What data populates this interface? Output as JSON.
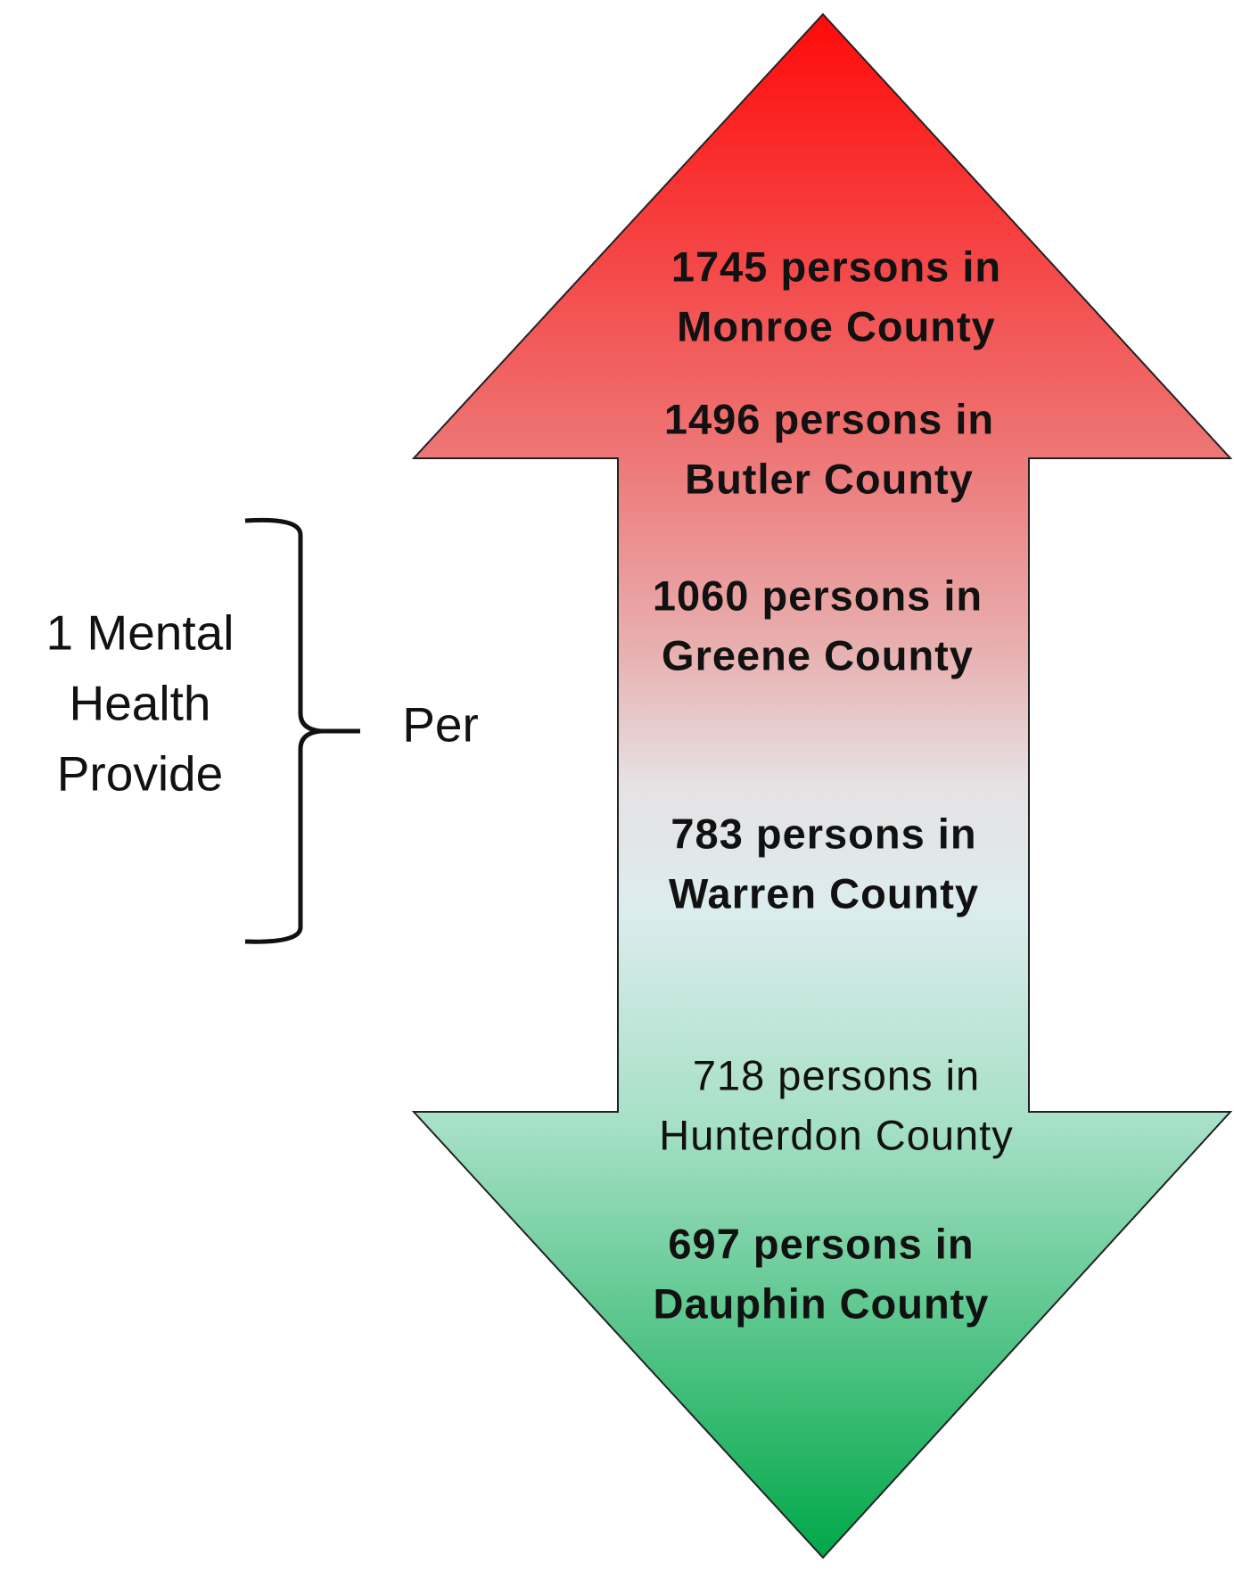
{
  "label": {
    "lines": [
      "1 Mental",
      "Health",
      "Provide"
    ]
  },
  "connector": "Per",
  "items": [
    {
      "lines": [
        "1745 persons in",
        "Monroe County"
      ],
      "bold": true
    },
    {
      "lines": [
        "1496 persons in",
        "Butler  County"
      ],
      "bold": true
    },
    {
      "lines": [
        "1060 persons in",
        "Greene County"
      ],
      "bold": true
    },
    {
      "lines": [
        "783 persons in",
        "Warren County"
      ],
      "bold": true
    },
    {
      "lines": [
        "718 persons in",
        "Hunterdon County"
      ],
      "bold": false
    },
    {
      "lines": [
        "697 persons in",
        "Dauphin  County"
      ],
      "bold": true
    }
  ]
}
